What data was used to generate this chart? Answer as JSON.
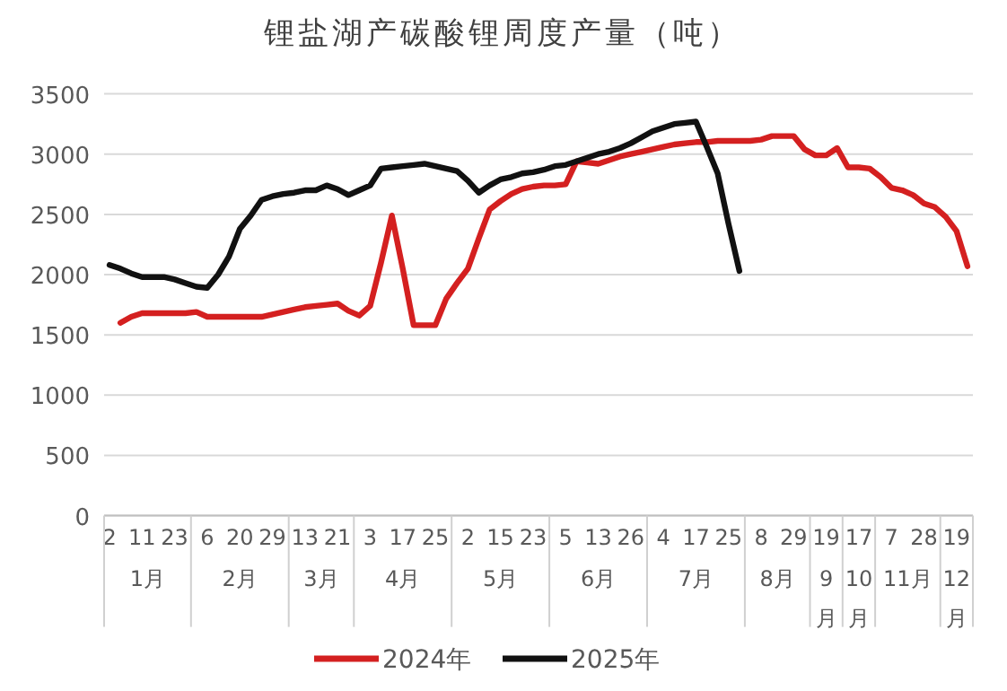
{
  "chart_data": {
    "type": "line",
    "title": "锂盐湖产碳酸锂周度产量（吨）",
    "categories": [
      "2",
      null,
      null,
      "11",
      null,
      null,
      "23",
      null,
      null,
      "6",
      null,
      null,
      "20",
      null,
      null,
      "29",
      null,
      null,
      "13",
      null,
      null,
      "21",
      null,
      null,
      "3",
      null,
      null,
      "17",
      null,
      null,
      "25",
      null,
      null,
      "2",
      null,
      null,
      "15",
      null,
      null,
      "23",
      null,
      null,
      "5",
      null,
      null,
      "13",
      null,
      null,
      "26",
      null,
      null,
      "4",
      null,
      null,
      "17",
      null,
      null,
      "25",
      null,
      null,
      "8",
      null,
      null,
      "29",
      null,
      null,
      "19",
      null,
      null,
      "17",
      null,
      null,
      "7",
      null,
      null,
      "28",
      null,
      null,
      "19",
      null
    ],
    "annotations": [
      "1月",
      "2月",
      "3月",
      "4月",
      "5月",
      "6月",
      "7月",
      "8月",
      "9月",
      "10月",
      "11月",
      "12月"
    ],
    "series": [
      {
        "name": "2024年",
        "color": "#d42020",
        "values": [
          null,
          1600,
          1650,
          1680,
          1680,
          1680,
          1680,
          1680,
          1690,
          1650,
          1650,
          1650,
          1650,
          1650,
          1650,
          1670,
          1690,
          1710,
          1730,
          1740,
          1750,
          1760,
          1700,
          1660,
          1740,
          2100,
          2490,
          2050,
          1580,
          1580,
          1580,
          1800,
          1930,
          2050,
          2300,
          2540,
          2610,
          2670,
          2710,
          2730,
          2740,
          2740,
          2750,
          2940,
          2930,
          2920,
          2950,
          2980,
          3000,
          3020,
          3040,
          3060,
          3080,
          3090,
          3100,
          3100,
          3110,
          3110,
          3110,
          3110,
          3120,
          3150,
          3150,
          3150,
          3040,
          2990,
          2990,
          3050,
          2890,
          2890,
          2880,
          2810,
          2720,
          2700,
          2660,
          2590,
          2560,
          2480,
          2360,
          2070
        ]
      },
      {
        "name": "2025年",
        "color": "#111111",
        "values": [
          2080,
          2050,
          2010,
          1980,
          1980,
          1980,
          1960,
          1930,
          1900,
          1890,
          2000,
          2150,
          2380,
          2490,
          2620,
          2650,
          2670,
          2680,
          2700,
          2700,
          2740,
          2710,
          2660,
          2700,
          2740,
          2880,
          2890,
          2900,
          2910,
          2920,
          2900,
          2880,
          2860,
          2780,
          2680,
          2740,
          2790,
          2810,
          2840,
          2850,
          2870,
          2900,
          2910,
          2940,
          2970,
          3000,
          3020,
          3050,
          3090,
          3140,
          3190,
          3220,
          3250,
          3260,
          3270,
          3060,
          2840,
          2420,
          2030,
          null,
          null,
          null,
          null,
          null,
          null,
          null,
          null,
          null,
          null,
          null,
          null,
          null,
          null,
          null,
          null,
          null,
          null,
          null,
          null,
          null
        ]
      }
    ],
    "ylim": [
      0,
      3500
    ],
    "yticks": [
      0,
      500,
      1000,
      1500,
      2000,
      2500,
      3000,
      3500
    ],
    "grid": "y",
    "legend": "bottom",
    "marker": "none",
    "line_style": "solid"
  }
}
